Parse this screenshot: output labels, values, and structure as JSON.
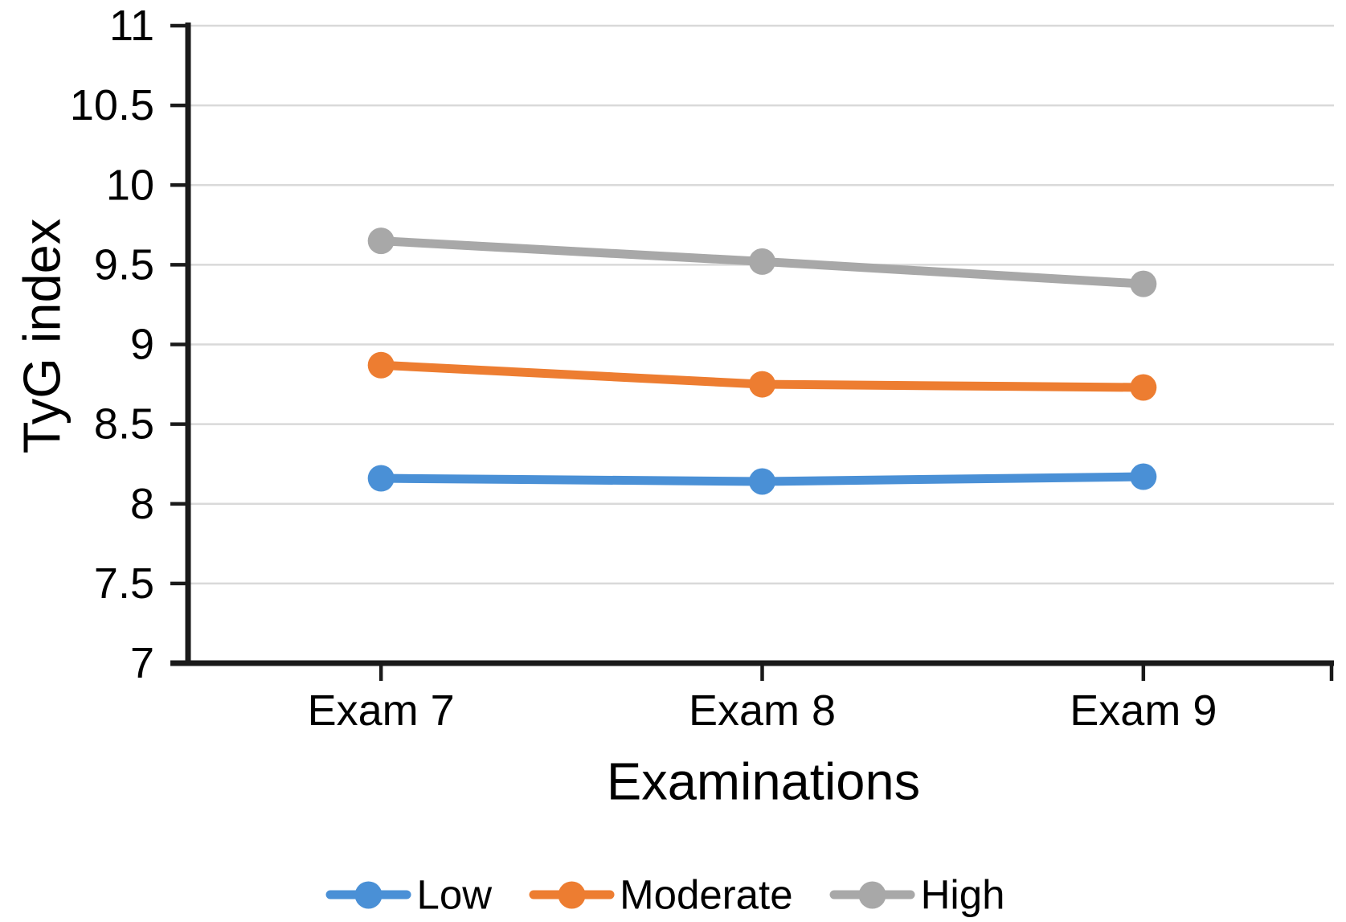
{
  "figure": {
    "background": "#ffffff"
  },
  "chart_data": {
    "type": "line",
    "title": "",
    "categories": [
      "Exam 7",
      "Exam 8",
      "Exam 9"
    ],
    "series": [
      {
        "name": "Low",
        "color": "#4A90D6",
        "values": [
          8.16,
          8.14,
          8.17
        ]
      },
      {
        "name": "Moderate",
        "color": "#ED7D31",
        "values": [
          8.87,
          8.75,
          8.73
        ]
      },
      {
        "name": "High",
        "color": "#A8A8A8",
        "values": [
          9.65,
          9.52,
          9.38
        ]
      }
    ],
    "xlabel": "Examinations",
    "ylabel": "TyG index",
    "ylim": [
      7,
      11
    ],
    "ytick_step": 0.5,
    "grid": true,
    "legend_position": "bottom",
    "marker": "circle",
    "axis_color": "#1a1a1a",
    "gridline_color": "#d9d9d9",
    "text_color": "#000000"
  }
}
